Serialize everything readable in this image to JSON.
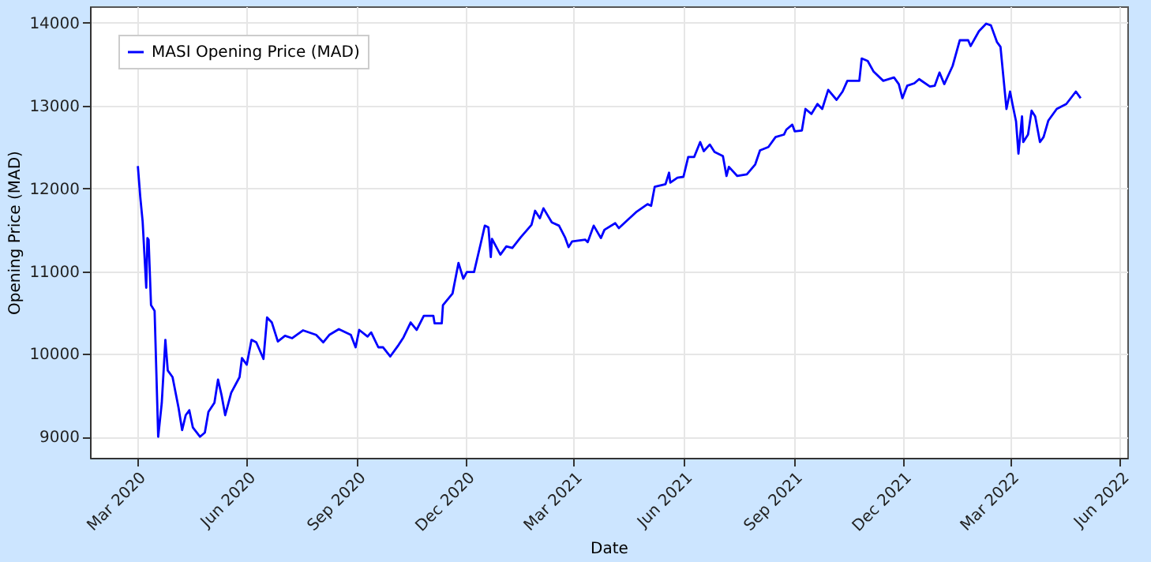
{
  "chart_data": {
    "type": "line",
    "xlabel": "Date",
    "ylabel": "Opening Price (MAD)",
    "legend": "top left",
    "grid": true,
    "line_style": "solid",
    "marker": "none",
    "xlim": [
      "2020-01-22",
      "2022-06-07"
    ],
    "ylim": [
      8745,
      14200
    ],
    "xticks": [
      {
        "value": "2020-03-01",
        "label": "Mar 2020"
      },
      {
        "value": "2020-06-01",
        "label": "Jun 2020"
      },
      {
        "value": "2020-09-01",
        "label": "Sep 2020"
      },
      {
        "value": "2020-12-01",
        "label": "Dec 2020"
      },
      {
        "value": "2021-03-01",
        "label": "Mar 2021"
      },
      {
        "value": "2021-06-01",
        "label": "Jun 2021"
      },
      {
        "value": "2021-09-01",
        "label": "Sep 2021"
      },
      {
        "value": "2021-12-01",
        "label": "Dec 2021"
      },
      {
        "value": "2022-03-01",
        "label": "Mar 2022"
      },
      {
        "value": "2022-06-01",
        "label": "Jun 2022"
      }
    ],
    "yticks": [
      9000,
      10000,
      11000,
      12000,
      13000,
      14000
    ],
    "x": [
      "2020-03-02",
      "2020-03-04",
      "2020-03-06",
      "2020-03-09",
      "2020-03-10",
      "2020-03-11",
      "2020-03-13",
      "2020-03-16",
      "2020-03-19",
      "2020-03-22",
      "2020-03-25",
      "2020-03-27",
      "2020-03-31",
      "2020-04-05",
      "2020-04-08",
      "2020-04-11",
      "2020-04-14",
      "2020-04-17",
      "2020-04-23",
      "2020-04-27",
      "2020-04-30",
      "2020-05-05",
      "2020-05-08",
      "2020-05-11",
      "2020-05-14",
      "2020-05-19",
      "2020-05-26",
      "2020-05-28",
      "2020-06-01",
      "2020-06-05",
      "2020-06-09",
      "2020-06-15",
      "2020-06-18",
      "2020-06-22",
      "2020-06-27",
      "2020-07-03",
      "2020-07-09",
      "2020-07-18",
      "2020-07-29",
      "2020-08-04",
      "2020-08-09",
      "2020-08-17",
      "2020-08-27",
      "2020-08-31",
      "2020-09-03",
      "2020-09-10",
      "2020-09-13",
      "2020-09-19",
      "2020-09-23",
      "2020-09-29",
      "2020-10-06",
      "2020-10-10",
      "2020-10-16",
      "2020-10-21",
      "2020-10-27",
      "2020-11-04",
      "2020-11-05",
      "2020-11-11",
      "2020-11-12",
      "2020-11-20",
      "2020-11-25",
      "2020-11-29",
      "2020-12-02",
      "2020-12-08",
      "2020-12-14",
      "2020-12-17",
      "2020-12-20",
      "2020-12-22",
      "2020-12-23",
      "2020-12-30",
      "2021-01-04",
      "2021-01-09",
      "2021-01-16",
      "2021-01-25",
      "2021-01-28",
      "2021-02-01",
      "2021-02-04",
      "2021-02-11",
      "2021-02-17",
      "2021-02-22",
      "2021-02-25",
      "2021-02-28",
      "2021-03-11",
      "2021-03-13",
      "2021-03-18",
      "2021-03-24",
      "2021-03-27",
      "2021-04-05",
      "2021-04-08",
      "2021-04-23",
      "2021-05-02",
      "2021-05-05",
      "2021-05-08",
      "2021-05-17",
      "2021-05-20",
      "2021-05-21",
      "2021-05-27",
      "2021-06-01",
      "2021-06-05",
      "2021-06-10",
      "2021-06-15",
      "2021-06-18",
      "2021-06-23",
      "2021-06-27",
      "2021-07-04",
      "2021-07-07",
      "2021-07-09",
      "2021-07-16",
      "2021-07-24",
      "2021-07-31",
      "2021-08-04",
      "2021-08-11",
      "2021-08-17",
      "2021-08-24",
      "2021-08-26",
      "2021-08-31",
      "2021-09-02",
      "2021-09-08",
      "2021-09-11",
      "2021-09-16",
      "2021-09-21",
      "2021-09-25",
      "2021-09-30",
      "2021-10-07",
      "2021-10-12",
      "2021-10-16",
      "2021-10-26",
      "2021-10-28",
      "2021-11-02",
      "2021-11-07",
      "2021-11-15",
      "2021-11-24",
      "2021-11-28",
      "2021-12-01",
      "2021-12-05",
      "2021-12-11",
      "2021-12-15",
      "2021-12-24",
      "2021-12-28",
      "2022-01-01",
      "2022-01-05",
      "2022-01-12",
      "2022-01-18",
      "2022-01-25",
      "2022-01-27",
      "2022-02-03",
      "2022-02-09",
      "2022-02-13",
      "2022-02-18",
      "2022-02-21",
      "2022-02-26",
      "2022-03-01",
      "2022-03-03",
      "2022-03-06",
      "2022-03-08",
      "2022-03-11",
      "2022-03-12",
      "2022-03-16",
      "2022-03-19",
      "2022-03-22",
      "2022-03-26",
      "2022-03-29",
      "2022-04-02",
      "2022-04-09",
      "2022-04-17",
      "2022-04-25",
      "2022-04-29"
    ],
    "series": [
      {
        "name": "MASI Opening Price (MAD)",
        "color": "#0000ff",
        "values": [
          12270,
          11900,
          11600,
          10800,
          11400,
          11380,
          10590,
          10520,
          9000,
          9410,
          10170,
          9800,
          9720,
          9350,
          9080,
          9260,
          9320,
          9110,
          9000,
          9050,
          9300,
          9410,
          9690,
          9500,
          9260,
          9530,
          9720,
          9950,
          9870,
          10170,
          10140,
          9940,
          10440,
          10380,
          10150,
          10220,
          10190,
          10285,
          10230,
          10140,
          10230,
          10300,
          10230,
          10080,
          10290,
          10210,
          10260,
          10080,
          10080,
          9970,
          10110,
          10200,
          10380,
          10290,
          10460,
          10460,
          10370,
          10370,
          10590,
          10730,
          11100,
          10910,
          10990,
          10990,
          11360,
          11550,
          11530,
          11170,
          11390,
          11200,
          11300,
          11280,
          11410,
          11560,
          11730,
          11640,
          11760,
          11590,
          11550,
          11410,
          11290,
          11360,
          11380,
          11350,
          11550,
          11400,
          11500,
          11580,
          11520,
          11720,
          11810,
          11790,
          12020,
          12050,
          12190,
          12070,
          12130,
          12140,
          12380,
          12380,
          12560,
          12450,
          12530,
          12440,
          12390,
          12150,
          12260,
          12150,
          12170,
          12290,
          12460,
          12500,
          12620,
          12650,
          12710,
          12770,
          12690,
          12700,
          12960,
          12900,
          13020,
          12960,
          13190,
          13070,
          13170,
          13300,
          13300,
          13570,
          13540,
          13410,
          13300,
          13340,
          13260,
          13090,
          13240,
          13270,
          13320,
          13230,
          13240,
          13400,
          13260,
          13480,
          13790,
          13790,
          13720,
          13900,
          13990,
          13970,
          13770,
          13710,
          12960,
          13170,
          13020,
          12810,
          12420,
          12870,
          12560,
          12650,
          12940,
          12870,
          12560,
          12620,
          12820,
          12960,
          13020,
          13170,
          13090
        ]
      }
    ]
  }
}
